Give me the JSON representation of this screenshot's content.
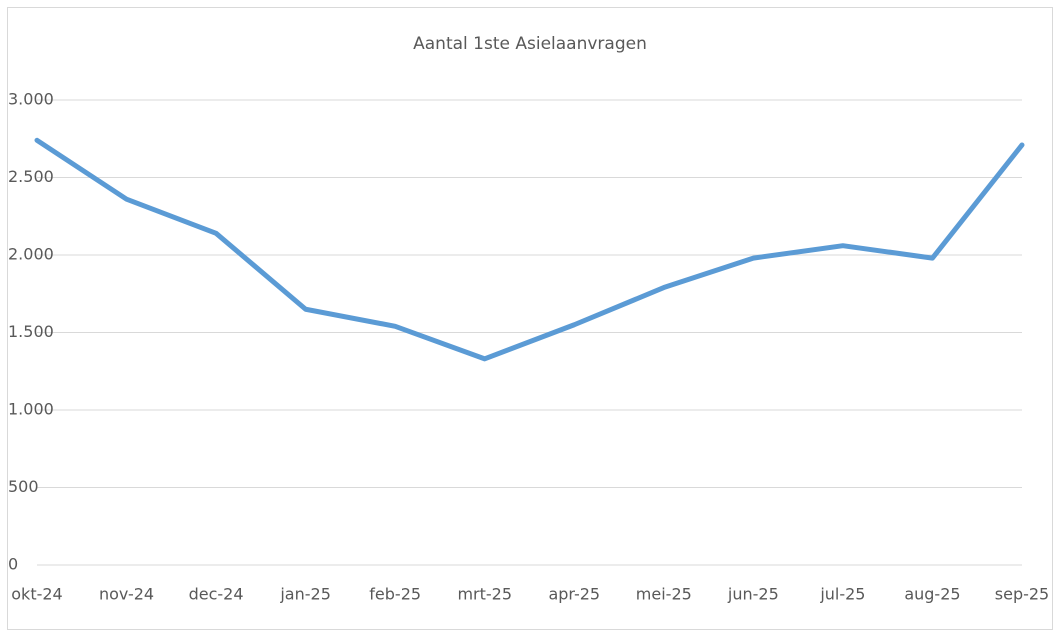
{
  "chart_data": {
    "type": "line",
    "title": "Aantal 1ste Asielaanvragen",
    "categories": [
      "okt-24",
      "nov-24",
      "dec-24",
      "jan-25",
      "feb-25",
      "mrt-25",
      "apr-25",
      "mei-25",
      "jun-25",
      "jul-25",
      "aug-25",
      "sep-25"
    ],
    "values": [
      2740,
      2360,
      2140,
      1650,
      1540,
      1330,
      1550,
      1790,
      1980,
      2060,
      1980,
      2710
    ],
    "color": "#5b9bd5",
    "ylim": [
      0,
      3000
    ],
    "yticks": [
      0,
      500,
      {
        "value": 1000,
        "label": "1.000"
      },
      {
        "value": 1500,
        "label": "1.500"
      },
      {
        "value": 2000,
        "label": "2.000"
      },
      {
        "value": 2500,
        "label": "2.500"
      },
      {
        "value": 3000,
        "label": "3.000"
      }
    ],
    "grid": true
  }
}
